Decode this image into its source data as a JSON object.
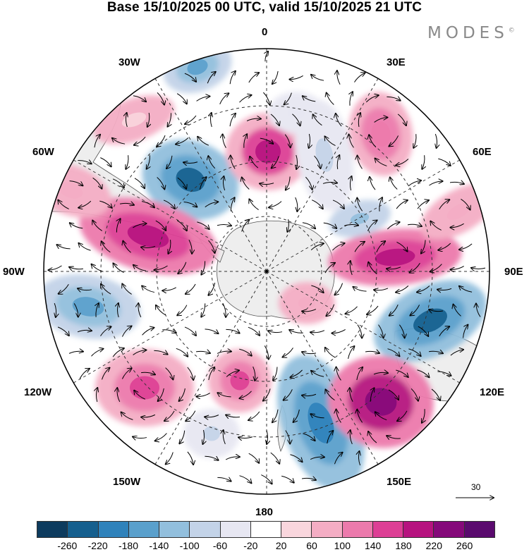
{
  "title": "Base 15/10/2025 00 UTC, valid 15/10/2025 21 UTC",
  "brand": {
    "name": "MODES",
    "mark": "©"
  },
  "longitude_labels": {
    "top": "0",
    "bottom": "180",
    "left": "90W",
    "right": "90E",
    "upper_left_1": "30W",
    "upper_left_2": "60W",
    "upper_right_1": "30E",
    "upper_right_2": "60E",
    "lower_left_1": "120W",
    "lower_left_2": "150W",
    "lower_right_1": "120E",
    "lower_right_2": "150E"
  },
  "reference_vector": {
    "label": "30"
  },
  "colorbar": {
    "ticks": [
      "-260",
      "-220",
      "-180",
      "-140",
      "-100",
      "-60",
      "-20",
      "20",
      "60",
      "100",
      "140",
      "180",
      "220",
      "260"
    ],
    "colors": [
      "#0d3b5e",
      "#155f8e",
      "#2f82bb",
      "#5aa0cc",
      "#92bfdd",
      "#c3d3e8",
      "#e7e7f2",
      "#ffffff",
      "#f9d6dd",
      "#f4adc4",
      "#ec7aac",
      "#dd3f95",
      "#b6137f",
      "#85097a",
      "#5a0a6e"
    ]
  },
  "colors": {
    "land": "#eeeeee",
    "land_edge": "#444444",
    "ocean": "#ffffff"
  }
}
